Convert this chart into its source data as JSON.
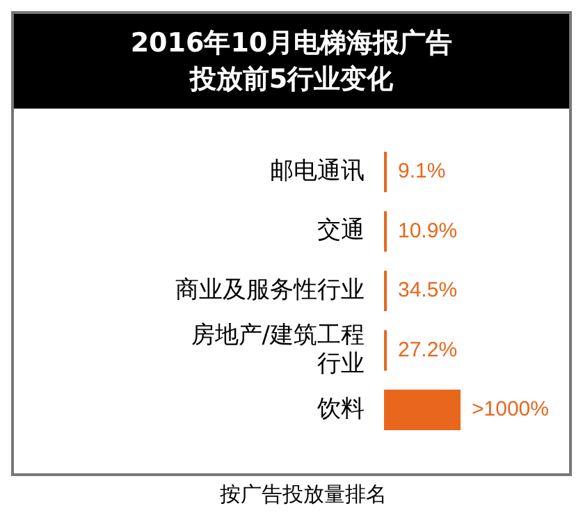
{
  "chart_data": {
    "type": "bar",
    "orientation": "horizontal",
    "title": "2016年10月电梯海报广告投放前5行业变化",
    "categories": [
      "邮电通讯",
      "交通",
      "商业及服务性行业",
      "房地产/建筑工程行业",
      "饮料"
    ],
    "values": [
      9.1,
      10.9,
      34.5,
      27.2,
      1000
    ],
    "value_labels": [
      "9.1%",
      "10.9%",
      "34.5%",
      "27.2%",
      ">1000%"
    ],
    "color": "#e8671c",
    "grid": false,
    "legend": false,
    "annotations": [
      "按广告投放量排名"
    ]
  }
}
